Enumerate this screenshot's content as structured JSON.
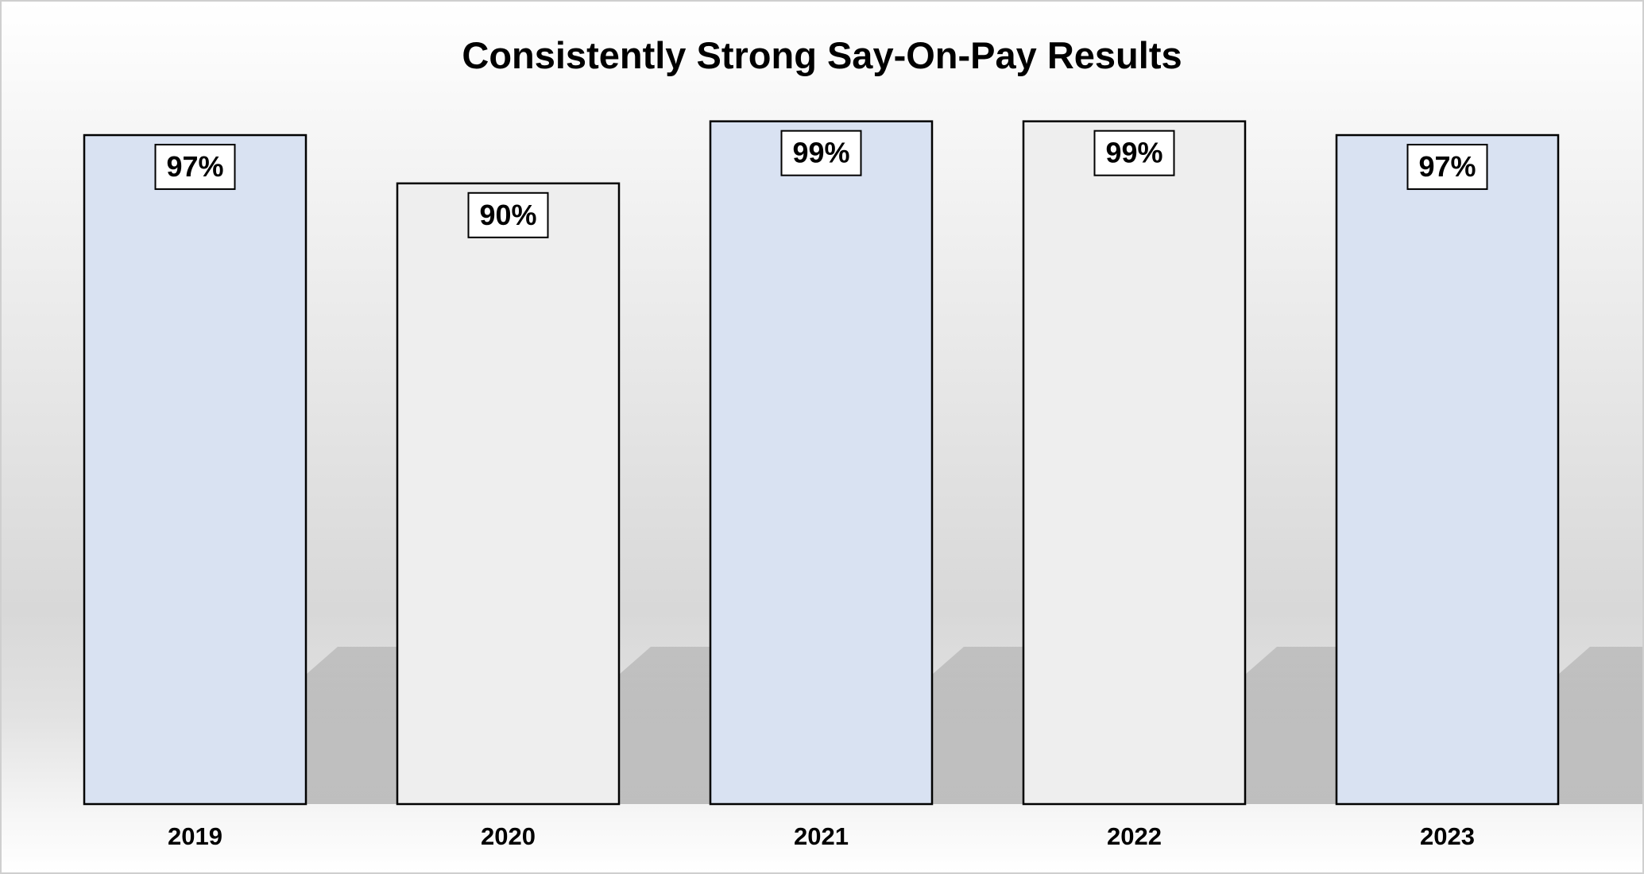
{
  "chart_data": {
    "type": "bar",
    "title": "Consistently Strong Say-On-Pay Results",
    "xlabel": "",
    "ylabel": "",
    "categories": [
      "2019",
      "2020",
      "2021",
      "2022",
      "2023"
    ],
    "values": [
      97,
      90,
      99,
      99,
      97
    ],
    "value_labels": [
      "97%",
      "90%",
      "99%",
      "99%",
      "97%"
    ],
    "ylim": [
      0,
      100
    ],
    "grid": false,
    "legend": "none",
    "colors": [
      "#d9e2f2",
      "#eeeeee",
      "#d9e2f2",
      "#eeeeee",
      "#d9e2f2"
    ]
  }
}
